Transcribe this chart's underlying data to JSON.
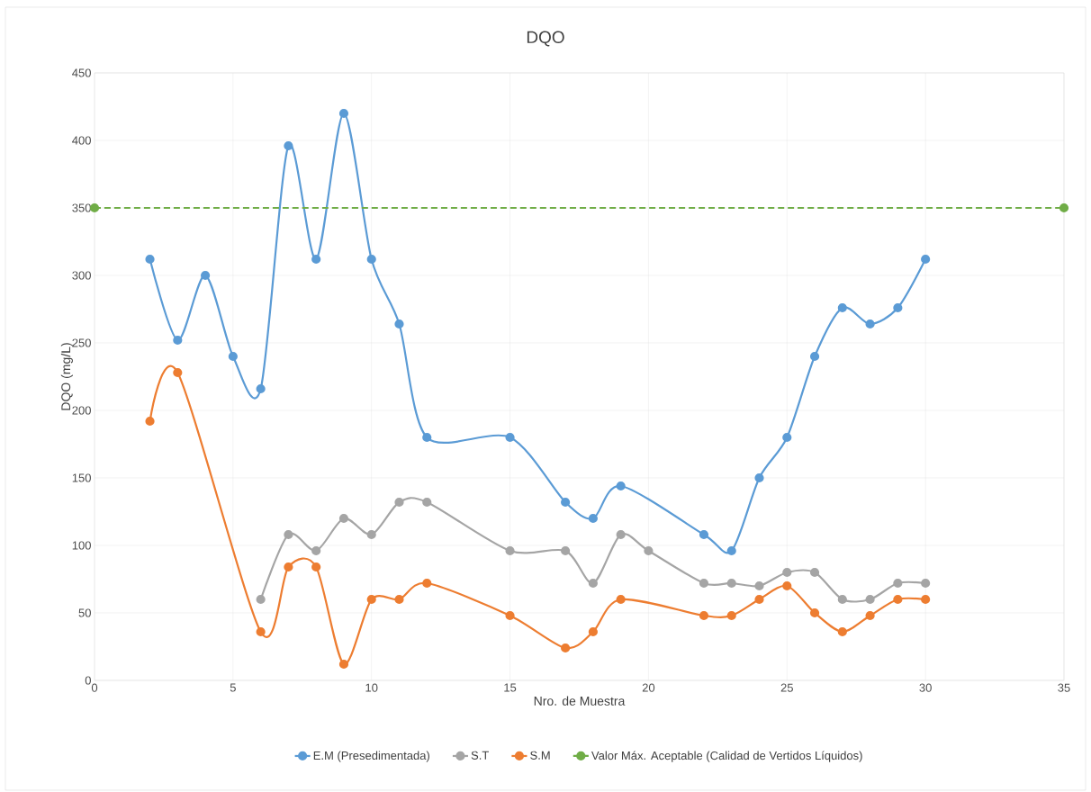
{
  "chart_data": {
    "type": "line",
    "title": "DQO",
    "xlabel": "Nro. de Muestra",
    "ylabel": "DQO (mg/L)",
    "xlim": [
      0,
      35
    ],
    "xticks": [
      0,
      5,
      10,
      15,
      20,
      25,
      30,
      35
    ],
    "ylim": [
      0,
      450
    ],
    "yticks": [
      0,
      50,
      100,
      150,
      200,
      250,
      300,
      350,
      400,
      450
    ],
    "grid": true,
    "legend": "bottom",
    "marker": "circle",
    "line_style": "solid",
    "series": [
      {
        "name": "E.M (Presedimentada)",
        "color": "#5b9bd5",
        "x": [
          2,
          3,
          4,
          5,
          6,
          7,
          8,
          9,
          10,
          11,
          12,
          15,
          17,
          18,
          19,
          22,
          23,
          24,
          25,
          26,
          27,
          28,
          29,
          30
        ],
        "values": [
          312,
          252,
          300,
          240,
          216,
          396,
          312,
          420,
          312,
          264,
          180,
          180,
          132,
          120,
          144,
          108,
          96,
          150,
          180,
          240,
          276,
          264,
          276,
          312
        ]
      },
      {
        "name": "S.T",
        "color": "#a5a5a5",
        "x": [
          6,
          7,
          8,
          9,
          10,
          11,
          12,
          15,
          17,
          18,
          19,
          20,
          22,
          23,
          24,
          25,
          26,
          27,
          28,
          29,
          30
        ],
        "values": [
          60,
          108,
          96,
          120,
          108,
          132,
          132,
          96,
          96,
          72,
          108,
          96,
          72,
          72,
          70,
          80,
          80,
          60,
          60,
          72,
          72
        ]
      },
      {
        "name": "S.M",
        "color": "#ed7d31",
        "x": [
          2,
          3,
          6,
          7,
          8,
          9,
          10,
          11,
          12,
          15,
          17,
          18,
          19,
          22,
          23,
          24,
          25,
          26,
          27,
          28,
          29,
          30
        ],
        "values": [
          192,
          228,
          36,
          84,
          84,
          12,
          60,
          60,
          72,
          48,
          24,
          36,
          60,
          48,
          48,
          60,
          70,
          50,
          36,
          48,
          60,
          60
        ]
      },
      {
        "name": "Valor Máx. Aceptable (Calidad de Vertidos Líquidos)",
        "color": "#70ad47",
        "x": [
          0,
          35
        ],
        "values": [
          350,
          350
        ],
        "line_style": "dashed"
      }
    ]
  }
}
